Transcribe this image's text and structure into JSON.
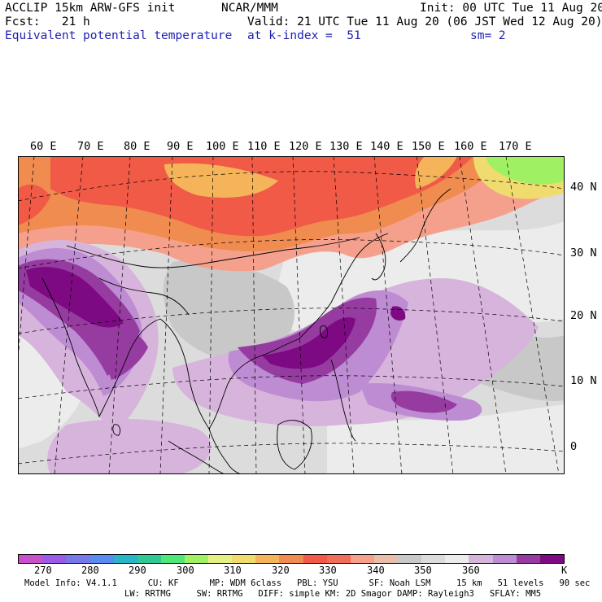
{
  "header": {
    "line1_left": "ACCLIP 15km ARW-GFS init",
    "line1_center": "NCAR/MMM",
    "line1_right": "Init: 00 UTC Tue 11 Aug 20",
    "line2_left": "Fcst:   21 h",
    "line2_right": "Valid: 21 UTC Tue 11 Aug 20 (06 JST Wed 12 Aug 20)",
    "line3_left": "Equivalent potential temperature",
    "line3_center": "at k-index =  51",
    "line3_right": "sm= 2"
  },
  "map": {
    "lon_labels": [
      "60 E",
      "70 E",
      "80 E",
      "90 E",
      "100 E",
      "110 E",
      "120 E",
      "130 E",
      "140 E",
      "150 E",
      "160 E",
      "170 E"
    ],
    "lat_labels": [
      "40 N",
      "30 N",
      "20 N",
      "10 N",
      "0"
    ],
    "field": "equivalent potential temperature"
  },
  "colorbar": {
    "colors": [
      "#c850c8",
      "#9c5ae6",
      "#7878e6",
      "#5a8cf0",
      "#2ab4c8",
      "#32c896",
      "#50e678",
      "#a0f064",
      "#e6f082",
      "#f0dc6e",
      "#f5b45a",
      "#f08c50",
      "#f05a46",
      "#f06e5a",
      "#f5a08c",
      "#e6beaa",
      "#c8c8c8",
      "#dcdcdc",
      "#ececec",
      "#d7b4dc",
      "#be8cd2",
      "#963ca0",
      "#7d0a82"
    ],
    "labels": [
      "270",
      "280",
      "290",
      "300",
      "310",
      "320",
      "330",
      "340",
      "350",
      "360"
    ],
    "unit": "K"
  },
  "footer": {
    "line1": "Model Info: V4.1.1      CU: KF      MP: WDM 6class   PBL: YSU      SF: Noah LSM     15 km   51 levels   90 sec",
    "line2": "LW: RRTMG     SW: RRTMG   DIFF: simple KM: 2D Smagor DAMP: Rayleigh3   SFLAY: MM5"
  }
}
